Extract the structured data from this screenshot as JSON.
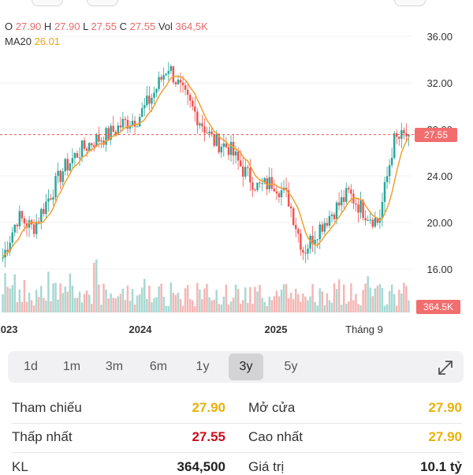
{
  "header": {
    "open_label": "O",
    "open": "27.90",
    "high_label": "H",
    "high": "27.90",
    "low_label": "L",
    "low": "27.55",
    "close_label": "C",
    "close": "27.55",
    "vol_label": "Vol",
    "vol": "364,5K",
    "ma_label": "MA20",
    "ma_value": "26.01"
  },
  "colors": {
    "up": "#27a69a",
    "down": "#ef5350",
    "ma": "#f0a030",
    "price_line": "#ef5350",
    "vol_up": "#a6d8d2",
    "vol_down": "#f5b5b3"
  },
  "price_badge": "27.55",
  "volume_badge": "364.5K",
  "ranges": [
    {
      "label": "1d"
    },
    {
      "label": "1m"
    },
    {
      "label": "3m"
    },
    {
      "label": "6m"
    },
    {
      "label": "1y"
    },
    {
      "label": "3y",
      "active": true
    },
    {
      "label": "5y"
    }
  ],
  "stats": {
    "ref_label": "Tham chiếu",
    "ref_value": "27.90",
    "open_label": "Mở cửa",
    "open_value": "27.90",
    "low_label": "Thấp nhất",
    "low_value": "27.55",
    "high_label": "Cao nhất",
    "high_value": "27.90",
    "vol_label": "KL",
    "vol_value": "364,500",
    "value_label": "Giá trị",
    "value_value": "10.1 tỷ"
  },
  "chart_data": {
    "type": "candlestick",
    "x_tick_labels": [
      "2023",
      "2024",
      "2025",
      "Tháng 9"
    ],
    "y_tick_labels": [
      "36.00",
      "32.00",
      "28.00",
      "24.00",
      "20.00",
      "16.00"
    ],
    "ylim": [
      14.0,
      37.0
    ],
    "last_price": 27.55,
    "indicator": "MA20",
    "price_path": [
      [
        "2023-10",
        17.0
      ],
      [
        "2023-11",
        20.5
      ],
      [
        "2023-12",
        19.5
      ],
      [
        "2024-01",
        22.0
      ],
      [
        "2024-02",
        24.5
      ],
      [
        "2024-03",
        26.0
      ],
      [
        "2024-04",
        27.0
      ],
      [
        "2024-05",
        27.5
      ],
      [
        "2024-06",
        28.5
      ],
      [
        "2024-07",
        29.0
      ],
      [
        "2024-08",
        31.0
      ],
      [
        "2024-09",
        33.5
      ],
      [
        "2024-10",
        31.0
      ],
      [
        "2024-11",
        29.0
      ],
      [
        "2024-12",
        27.0
      ],
      [
        "2025-01",
        26.5
      ],
      [
        "2025-02",
        24.5
      ],
      [
        "2025-03",
        23.0
      ],
      [
        "2025-04",
        23.5
      ],
      [
        "2025-05",
        22.0
      ],
      [
        "2025-06",
        17.5
      ],
      [
        "2025-07",
        19.5
      ],
      [
        "2025-08",
        21.0
      ],
      [
        "2025-09",
        22.5
      ],
      [
        "2025-10",
        21.0
      ],
      [
        "2025-11",
        20.0
      ],
      [
        "2025-12",
        27.0
      ],
      [
        "2026-01",
        27.55
      ]
    ]
  }
}
